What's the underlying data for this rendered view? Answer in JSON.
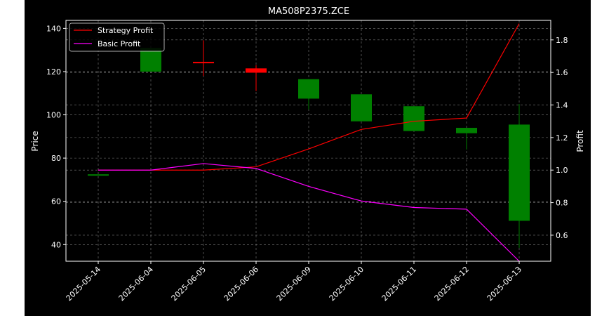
{
  "chart_data": {
    "type": "candlestick+line",
    "title": "MA508P2375.ZCE",
    "xlabel": "",
    "ylabel_left": "Price",
    "ylabel_right": "Profit",
    "categories": [
      "2025-05-14",
      "2025-06-04",
      "2025-06-05",
      "2025-06-06",
      "2025-06-09",
      "2025-06-10",
      "2025-06-11",
      "2025-06-12",
      "2025-06-13"
    ],
    "ylim_left": [
      32.3,
      143.7
    ],
    "ylim_right": [
      0.44,
      1.92
    ],
    "yticks_left": [
      40,
      60,
      80,
      100,
      120,
      140
    ],
    "yticks_right": [
      0.6,
      0.8,
      1.0,
      1.2,
      1.4,
      1.6,
      1.8
    ],
    "grid": true,
    "legend_position": "top-left",
    "colors": {
      "background": "#000000",
      "frame": "#ffffff",
      "up": "#008000",
      "down": "#ff0000",
      "strategy": "#ff0000",
      "basic": "#ff00ff"
    },
    "candles": [
      {
        "date": "2025-05-14",
        "open": 72.5,
        "high": 72.5,
        "low": 72.5,
        "close": 72.5
      },
      {
        "date": "2025-06-04",
        "open": 120.0,
        "high": 131.0,
        "low": 120.0,
        "close": 131.0
      },
      {
        "date": "2025-06-05",
        "open": 124.5,
        "high": 134.5,
        "low": 118.0,
        "close": 124.0
      },
      {
        "date": "2025-06-06",
        "open": 121.5,
        "high": 123.0,
        "low": 111.0,
        "close": 119.5
      },
      {
        "date": "2025-06-09",
        "open": 107.5,
        "high": 116.5,
        "low": 102.5,
        "close": 116.5
      },
      {
        "date": "2025-06-10",
        "open": 97.0,
        "high": 109.5,
        "low": 97.0,
        "close": 109.5
      },
      {
        "date": "2025-06-11",
        "open": 92.5,
        "high": 104.0,
        "low": 92.5,
        "close": 104.0
      },
      {
        "date": "2025-06-12",
        "open": 91.5,
        "high": 94.0,
        "low": 84.0,
        "close": 94.0
      },
      {
        "date": "2025-06-13",
        "open": 51.0,
        "high": 105.0,
        "low": 38.5,
        "close": 95.5
      }
    ],
    "series": [
      {
        "name": "Strategy Profit",
        "axis": "right",
        "values": [
          1.0,
          1.0,
          1.0,
          1.02,
          1.13,
          1.25,
          1.3,
          1.32,
          1.9
        ]
      },
      {
        "name": "Basic Profit",
        "axis": "right",
        "values": [
          1.0,
          1.0,
          1.04,
          1.01,
          0.9,
          0.81,
          0.77,
          0.76,
          0.44
        ]
      }
    ]
  }
}
